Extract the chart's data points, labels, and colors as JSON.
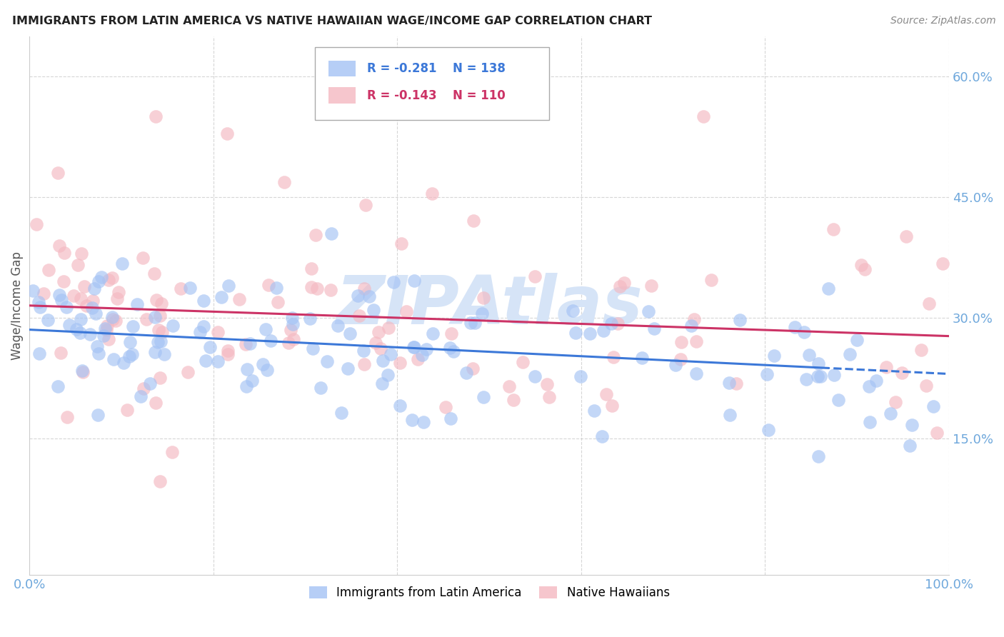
{
  "title": "IMMIGRANTS FROM LATIN AMERICA VS NATIVE HAWAIIAN WAGE/INCOME GAP CORRELATION CHART",
  "source_text": "Source: ZipAtlas.com",
  "ylabel": "Wage/Income Gap",
  "legend1_label": "Immigrants from Latin America",
  "legend2_label": "Native Hawaiians",
  "R1": -0.281,
  "N1": 138,
  "R2": -0.143,
  "N2": 110,
  "blue_color": "#a4c2f4",
  "pink_color": "#f4b8c1",
  "blue_line_color": "#3c78d8",
  "pink_line_color": "#cc3366",
  "axis_label_color": "#6fa8dc",
  "title_color": "#222222",
  "watermark_color": "#d6e4f7",
  "background": "#ffffff",
  "grid_color": "#cccccc",
  "xlim": [
    0.0,
    1.0
  ],
  "ylim": [
    -0.02,
    0.65
  ],
  "x_ticks": [
    0.0,
    0.2,
    0.4,
    0.6,
    0.8,
    1.0
  ],
  "x_tick_labels": [
    "0.0%",
    "",
    "",
    "",
    "",
    "100.0%"
  ],
  "y_ticks": [
    0.15,
    0.3,
    0.45,
    0.6
  ],
  "y_tick_labels": [
    "15.0%",
    "30.0%",
    "45.0%",
    "60.0%"
  ],
  "blue_intercept": 0.285,
  "blue_slope": -0.055,
  "pink_intercept": 0.315,
  "pink_slope": -0.038,
  "blue_noise": 0.048,
  "pink_noise": 0.075,
  "dashed_cutoff": 0.87
}
